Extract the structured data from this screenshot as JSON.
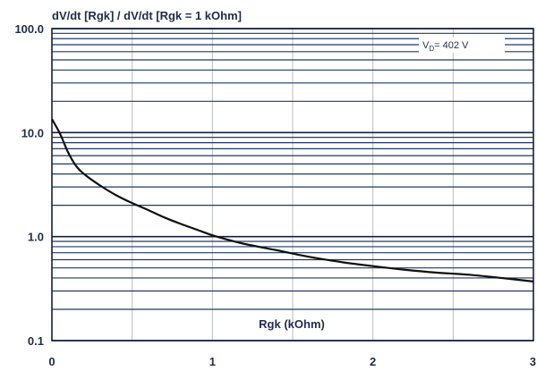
{
  "chart_data": {
    "type": "line",
    "title": "dV/dt [Rgk] / dV/dt [Rgk = 1 kOhm]",
    "xlabel": "Rgk (kOhm)",
    "ylabel": "",
    "xlim": [
      0,
      3
    ],
    "ylim": [
      0.1,
      100
    ],
    "yscale": "log",
    "grid": true,
    "x_ticks": [
      0,
      0.5,
      1,
      1.5,
      2,
      2.5,
      3
    ],
    "x_tick_labels": [
      "0",
      "",
      "1",
      "",
      "2",
      "",
      "3"
    ],
    "y_ticks": [
      0.1,
      1,
      10,
      100
    ],
    "y_tick_labels": [
      "0.1",
      "1.0",
      "10.0",
      "100.0"
    ],
    "annotation": {
      "text": "VD = 402 V",
      "main": "V",
      "sub": "D",
      "rest": "= 402 V"
    },
    "series": [
      {
        "x": [
          0,
          0.05,
          0.1,
          0.15,
          0.2,
          0.3,
          0.4,
          0.5,
          0.6,
          0.7,
          0.8,
          0.9,
          1.0,
          1.1,
          1.2,
          1.4,
          1.6,
          1.8,
          2.0,
          2.2,
          2.4,
          2.6,
          2.8,
          3.0
        ],
        "values": [
          13.5,
          9.8,
          6.5,
          4.8,
          4.0,
          3.1,
          2.5,
          2.1,
          1.8,
          1.53,
          1.33,
          1.17,
          1.03,
          0.93,
          0.85,
          0.74,
          0.64,
          0.57,
          0.52,
          0.48,
          0.45,
          0.43,
          0.4,
          0.37
        ]
      }
    ]
  }
}
